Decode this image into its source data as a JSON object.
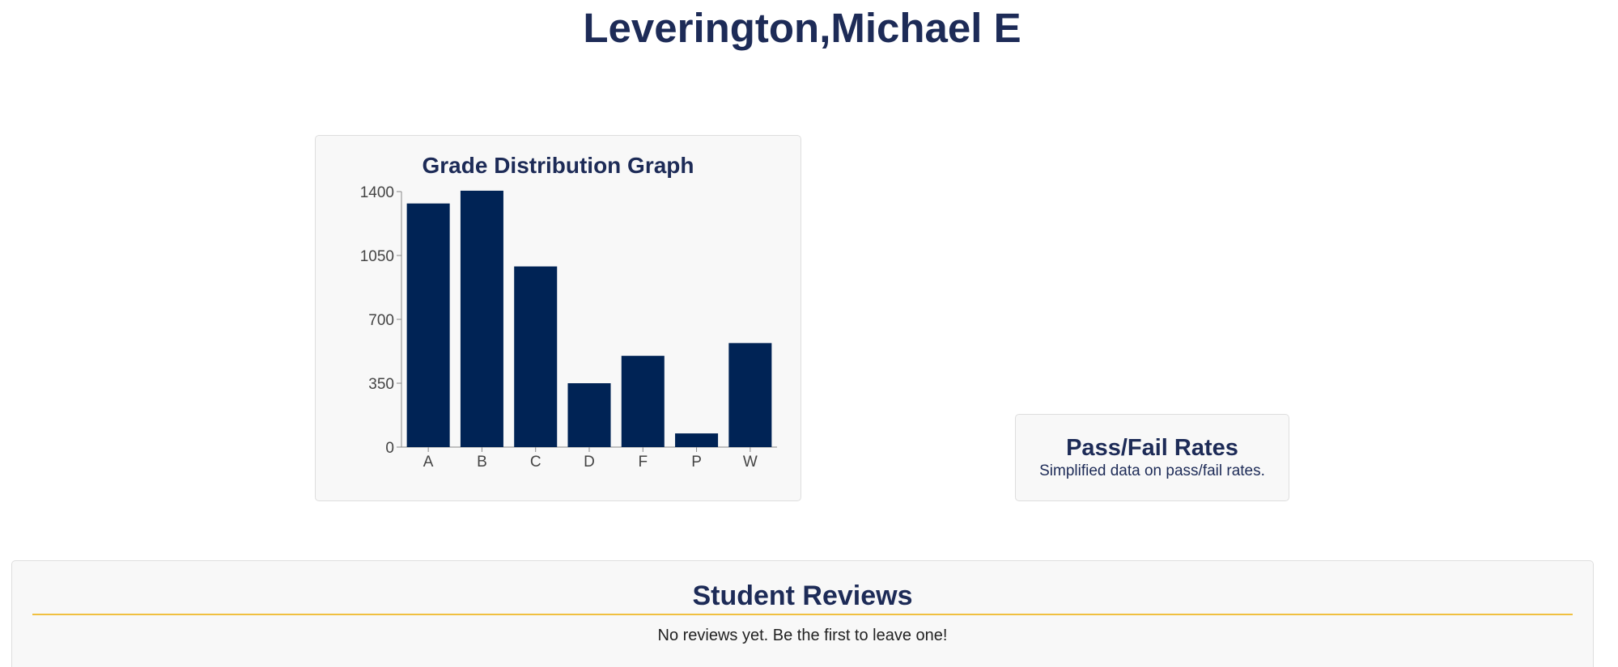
{
  "professor": {
    "name": "Leverington,Michael E"
  },
  "grade_card": {
    "title": "Grade Distribution Graph"
  },
  "chart_data": {
    "type": "bar",
    "title": "Grade Distribution Graph",
    "categories": [
      "A",
      "B",
      "C",
      "D",
      "F",
      "P",
      "W"
    ],
    "values": [
      1335,
      1405,
      990,
      350,
      500,
      75,
      570
    ],
    "ylim": [
      0,
      1400
    ],
    "yticks": [
      0,
      350,
      700,
      1050,
      1400
    ],
    "xlabel": "",
    "ylabel": "",
    "bar_color": "#002355",
    "grid": false
  },
  "pass_fail": {
    "title": "Pass/Fail Rates",
    "subtitle": "Simplified data on pass/fail rates."
  },
  "reviews": {
    "title": "Student Reviews",
    "empty_text": "No reviews yet. Be the first to leave one!",
    "divider_color": "#f0c040"
  }
}
